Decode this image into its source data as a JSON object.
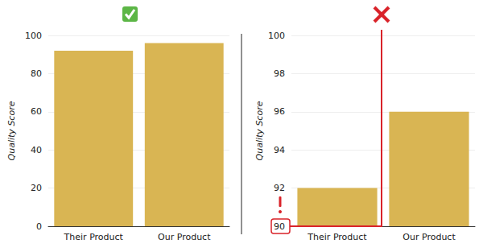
{
  "chart_data": [
    {
      "type": "bar",
      "categories": [
        "Their Product",
        "Our Product"
      ],
      "values": [
        92,
        96
      ],
      "color": "#d9b553",
      "ylabel": "Quality Score",
      "ylim": [
        0,
        100
      ],
      "yticks": [
        0,
        20,
        40,
        60,
        80,
        100
      ],
      "grid": true
    },
    {
      "type": "bar",
      "categories": [
        "Their Product",
        "Our Product"
      ],
      "values": [
        92,
        96
      ],
      "color": "#d9b553",
      "ylabel": "Quality Score",
      "ylim": [
        90,
        100
      ],
      "yticks": [
        90,
        92,
        94,
        96,
        98,
        100
      ],
      "grid": true
    }
  ]
}
